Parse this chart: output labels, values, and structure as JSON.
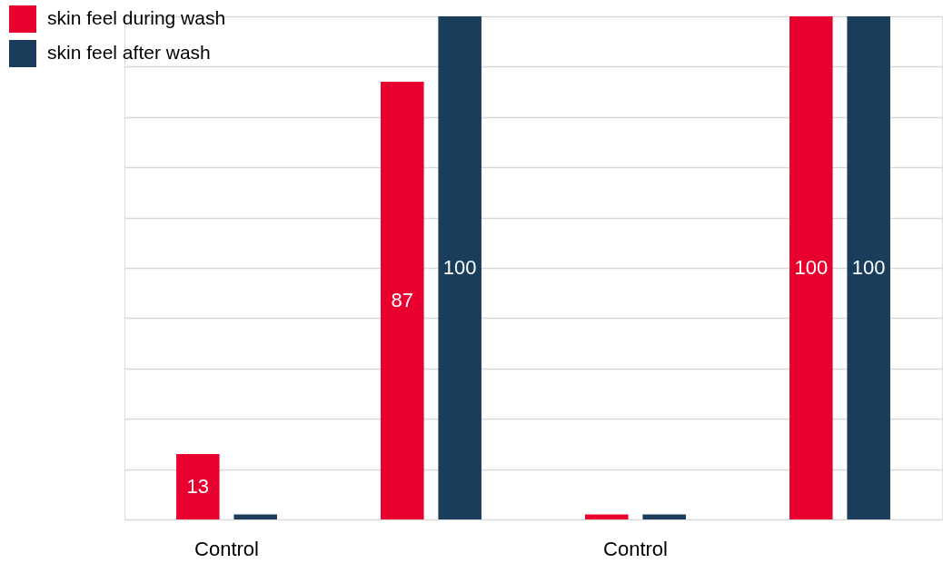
{
  "chart_data": {
    "type": "bar",
    "categories": [
      "Control",
      null,
      "Control",
      null
    ],
    "series": [
      {
        "name": "skin feel during wash",
        "color": "#e8002f",
        "values": [
          13,
          87,
          1,
          100
        ],
        "value_labels": [
          "13",
          "87",
          null,
          "100"
        ]
      },
      {
        "name": "skin feel after wash",
        "color": "#1a3d5c",
        "values": [
          1,
          100,
          1,
          100
        ],
        "value_labels": [
          null,
          "100",
          null,
          "100"
        ]
      }
    ],
    "ylim": [
      0,
      100
    ],
    "yticks": [
      {
        "value": 0,
        "label": null
      },
      {
        "value": 10,
        "label": null
      },
      {
        "value": 20,
        "label": null
      },
      {
        "value": 30,
        "label": null
      },
      {
        "value": 40,
        "label": null
      },
      {
        "value": 50,
        "label": null
      },
      {
        "value": 60,
        "label": null
      },
      {
        "value": 70,
        "label": null
      },
      {
        "value": 80,
        "label": null
      },
      {
        "value": 90,
        "label": null
      },
      {
        "value": 100,
        "label": null
      }
    ],
    "grid": "y",
    "legend": "top left",
    "tick_labels": "x"
  }
}
